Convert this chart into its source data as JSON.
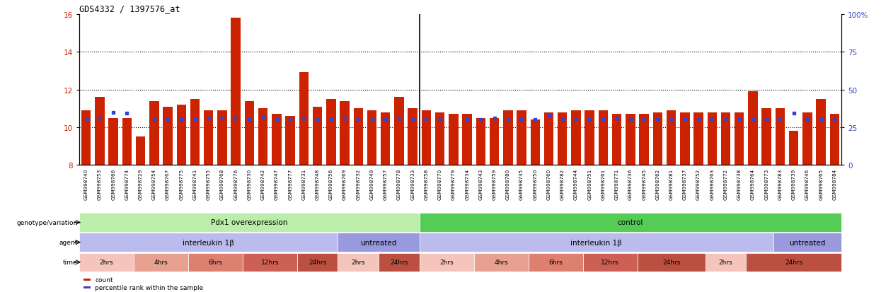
{
  "title": "GDS4332 / 1397576_at",
  "ylim_left": [
    8,
    16
  ],
  "ylim_right": [
    0,
    100
  ],
  "yticks_left": [
    8,
    10,
    12,
    14,
    16
  ],
  "yticks_right": [
    0,
    25,
    50,
    75,
    100
  ],
  "ytick_labels_right": [
    "0",
    "25",
    "50",
    "75",
    "100%"
  ],
  "bar_color": "#CC2200",
  "dot_color": "#3344CC",
  "samples": [
    "GSM998740",
    "GSM998753",
    "GSM998766",
    "GSM998774",
    "GSM998729",
    "GSM998754",
    "GSM998767",
    "GSM998775",
    "GSM998741",
    "GSM998755",
    "GSM998768",
    "GSM998776",
    "GSM998730",
    "GSM998742",
    "GSM998747",
    "GSM998777",
    "GSM998731",
    "GSM998748",
    "GSM998756",
    "GSM998769",
    "GSM998732",
    "GSM998749",
    "GSM998757",
    "GSM998778",
    "GSM998733",
    "GSM998758",
    "GSM998770",
    "GSM998779",
    "GSM998734",
    "GSM998743",
    "GSM998759",
    "GSM998780",
    "GSM998735",
    "GSM998750",
    "GSM998760",
    "GSM998782",
    "GSM998744",
    "GSM998751",
    "GSM998761",
    "GSM998771",
    "GSM998736",
    "GSM998745",
    "GSM998762",
    "GSM998781",
    "GSM998737",
    "GSM998752",
    "GSM998763",
    "GSM998772",
    "GSM998738",
    "GSM998764",
    "GSM998773",
    "GSM998783",
    "GSM998739",
    "GSM998746",
    "GSM998765",
    "GSM998784"
  ],
  "bar_heights": [
    10.9,
    11.6,
    10.5,
    10.5,
    9.5,
    11.4,
    11.1,
    11.2,
    11.5,
    10.9,
    10.9,
    15.8,
    11.4,
    11.0,
    10.7,
    10.6,
    12.9,
    11.1,
    11.5,
    11.4,
    11.0,
    10.9,
    10.8,
    11.6,
    11.0,
    10.9,
    10.8,
    10.7,
    10.7,
    10.5,
    10.5,
    10.9,
    10.9,
    10.4,
    10.8,
    10.8,
    10.9,
    10.9,
    10.9,
    10.7,
    10.7,
    10.7,
    10.8,
    10.9,
    10.8,
    10.8,
    10.8,
    10.8,
    10.8,
    11.9,
    11.0,
    11.0,
    9.8,
    10.8,
    11.5,
    10.7
  ],
  "dot_heights": [
    10.45,
    10.5,
    10.8,
    10.75,
    null,
    10.4,
    10.4,
    10.4,
    10.4,
    10.5,
    10.5,
    10.5,
    10.4,
    10.55,
    10.4,
    10.4,
    10.5,
    10.4,
    10.4,
    10.5,
    10.45,
    10.4,
    10.4,
    10.5,
    10.4,
    10.45,
    10.4,
    null,
    10.45,
    10.4,
    10.5,
    10.4,
    10.4,
    10.4,
    10.65,
    10.4,
    10.4,
    10.4,
    10.4,
    10.5,
    10.4,
    10.4,
    10.4,
    10.4,
    10.4,
    10.4,
    10.4,
    10.4,
    10.4,
    10.4,
    10.4,
    10.4,
    10.75,
    10.4,
    10.4,
    10.4
  ],
  "groups": [
    {
      "label": "Pdx1 overexpression",
      "start": 0,
      "end": 25,
      "color": "#bbeeaa"
    },
    {
      "label": "control",
      "start": 25,
      "end": 56,
      "color": "#55cc55"
    }
  ],
  "agents": [
    {
      "label": "interleukin 1β",
      "start": 0,
      "end": 19,
      "color": "#bbbbee"
    },
    {
      "label": "untreated",
      "start": 19,
      "end": 25,
      "color": "#9999dd"
    },
    {
      "label": "interleukin 1β",
      "start": 25,
      "end": 51,
      "color": "#bbbbee"
    },
    {
      "label": "untreated",
      "start": 51,
      "end": 56,
      "color": "#9999dd"
    }
  ],
  "times": [
    {
      "label": "2hrs",
      "start": 0,
      "end": 4,
      "color": "#f5c5bb"
    },
    {
      "label": "4hrs",
      "start": 4,
      "end": 8,
      "color": "#e8a090"
    },
    {
      "label": "6hrs",
      "start": 8,
      "end": 12,
      "color": "#dd8070"
    },
    {
      "label": "12hrs",
      "start": 12,
      "end": 16,
      "color": "#cc6055"
    },
    {
      "label": "24hrs",
      "start": 16,
      "end": 19,
      "color": "#bb5040"
    },
    {
      "label": "2hrs",
      "start": 19,
      "end": 22,
      "color": "#f5c5bb"
    },
    {
      "label": "24hrs",
      "start": 22,
      "end": 25,
      "color": "#bb5040"
    },
    {
      "label": "2hrs",
      "start": 25,
      "end": 29,
      "color": "#f5c5bb"
    },
    {
      "label": "4hrs",
      "start": 29,
      "end": 33,
      "color": "#e8a090"
    },
    {
      "label": "6hrs",
      "start": 33,
      "end": 37,
      "color": "#dd8070"
    },
    {
      "label": "12hrs",
      "start": 37,
      "end": 41,
      "color": "#cc6055"
    },
    {
      "label": "24hrs",
      "start": 41,
      "end": 46,
      "color": "#bb5040"
    },
    {
      "label": "2hrs",
      "start": 46,
      "end": 49,
      "color": "#f5c5bb"
    },
    {
      "label": "24hrs",
      "start": 49,
      "end": 56,
      "color": "#bb5040"
    }
  ],
  "legend_items": [
    {
      "label": "count",
      "color": "#CC2200"
    },
    {
      "label": "percentile rank within the sample",
      "color": "#3344CC"
    }
  ],
  "left_axis_color": "#CC2200",
  "right_axis_color": "#3344CC",
  "group_sep": 24.5,
  "n_samples": 56
}
